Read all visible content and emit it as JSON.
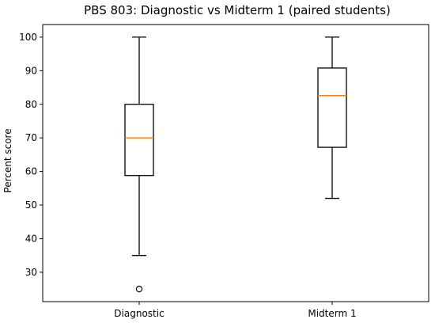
{
  "chart_data": {
    "type": "box",
    "title": "PBS 803: Diagnostic vs Midterm 1 (paired students)",
    "xlabel": "",
    "ylabel": "Percent score",
    "categories": [
      "Diagnostic",
      "Midterm 1"
    ],
    "boxes": [
      {
        "category": "Diagnostic",
        "whisker_low": 35,
        "q1": 58.8,
        "median": 70,
        "q3": 80,
        "whisker_high": 100,
        "outliers": [
          25
        ]
      },
      {
        "category": "Midterm 1",
        "whisker_low": 52,
        "q1": 67.2,
        "median": 82.6,
        "q3": 90.8,
        "whisker_high": 100,
        "outliers": []
      }
    ],
    "yticks": [
      30,
      40,
      50,
      60,
      70,
      80,
      90,
      100
    ],
    "ylim": [
      21.25,
      103.75
    ],
    "grid": false,
    "colors": {
      "box": "#000000",
      "median": "#ff7f0e",
      "axis": "#000000"
    }
  }
}
